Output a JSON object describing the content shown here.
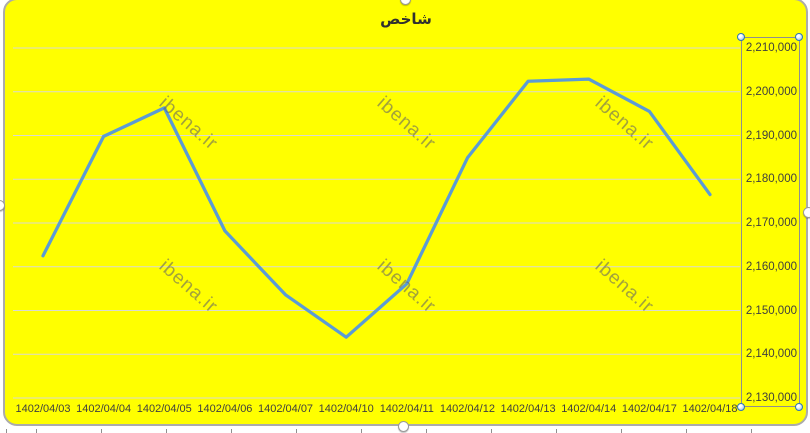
{
  "chart_data": {
    "type": "line",
    "title": "شاخص",
    "categories": [
      "1402/04/03",
      "1402/04/04",
      "1402/04/05",
      "1402/04/06",
      "1402/04/07",
      "1402/04/10",
      "1402/04/11",
      "1402/04/12",
      "1402/04/13",
      "1402/04/14",
      "1402/04/17",
      "1402/04/18"
    ],
    "series": [
      {
        "name": "شاخص",
        "values": [
          2162500,
          2189800,
          2196300,
          2168200,
          2153600,
          2143900,
          2156100,
          2184900,
          2202400,
          2202900,
          2195500,
          2176500
        ]
      }
    ],
    "xlabel": "",
    "ylabel": "",
    "ylim": [
      2130000,
      2210000
    ],
    "y_tick_step": 10000,
    "grid": true,
    "legend": "none",
    "line_color": "#5B9BD5",
    "background_color": "#FFFF00",
    "gridline_color": "#DADAD2"
  },
  "y_axis": {
    "tick_labels": [
      "2,210,000",
      "2,200,000",
      "2,190,000",
      "2,180,000",
      "2,170,000",
      "2,160,000",
      "2,150,000",
      "2,140,000",
      "2,130,000"
    ]
  },
  "watermark": {
    "text": "ibena.ir"
  },
  "selection": {
    "value_axis_selected": true
  }
}
